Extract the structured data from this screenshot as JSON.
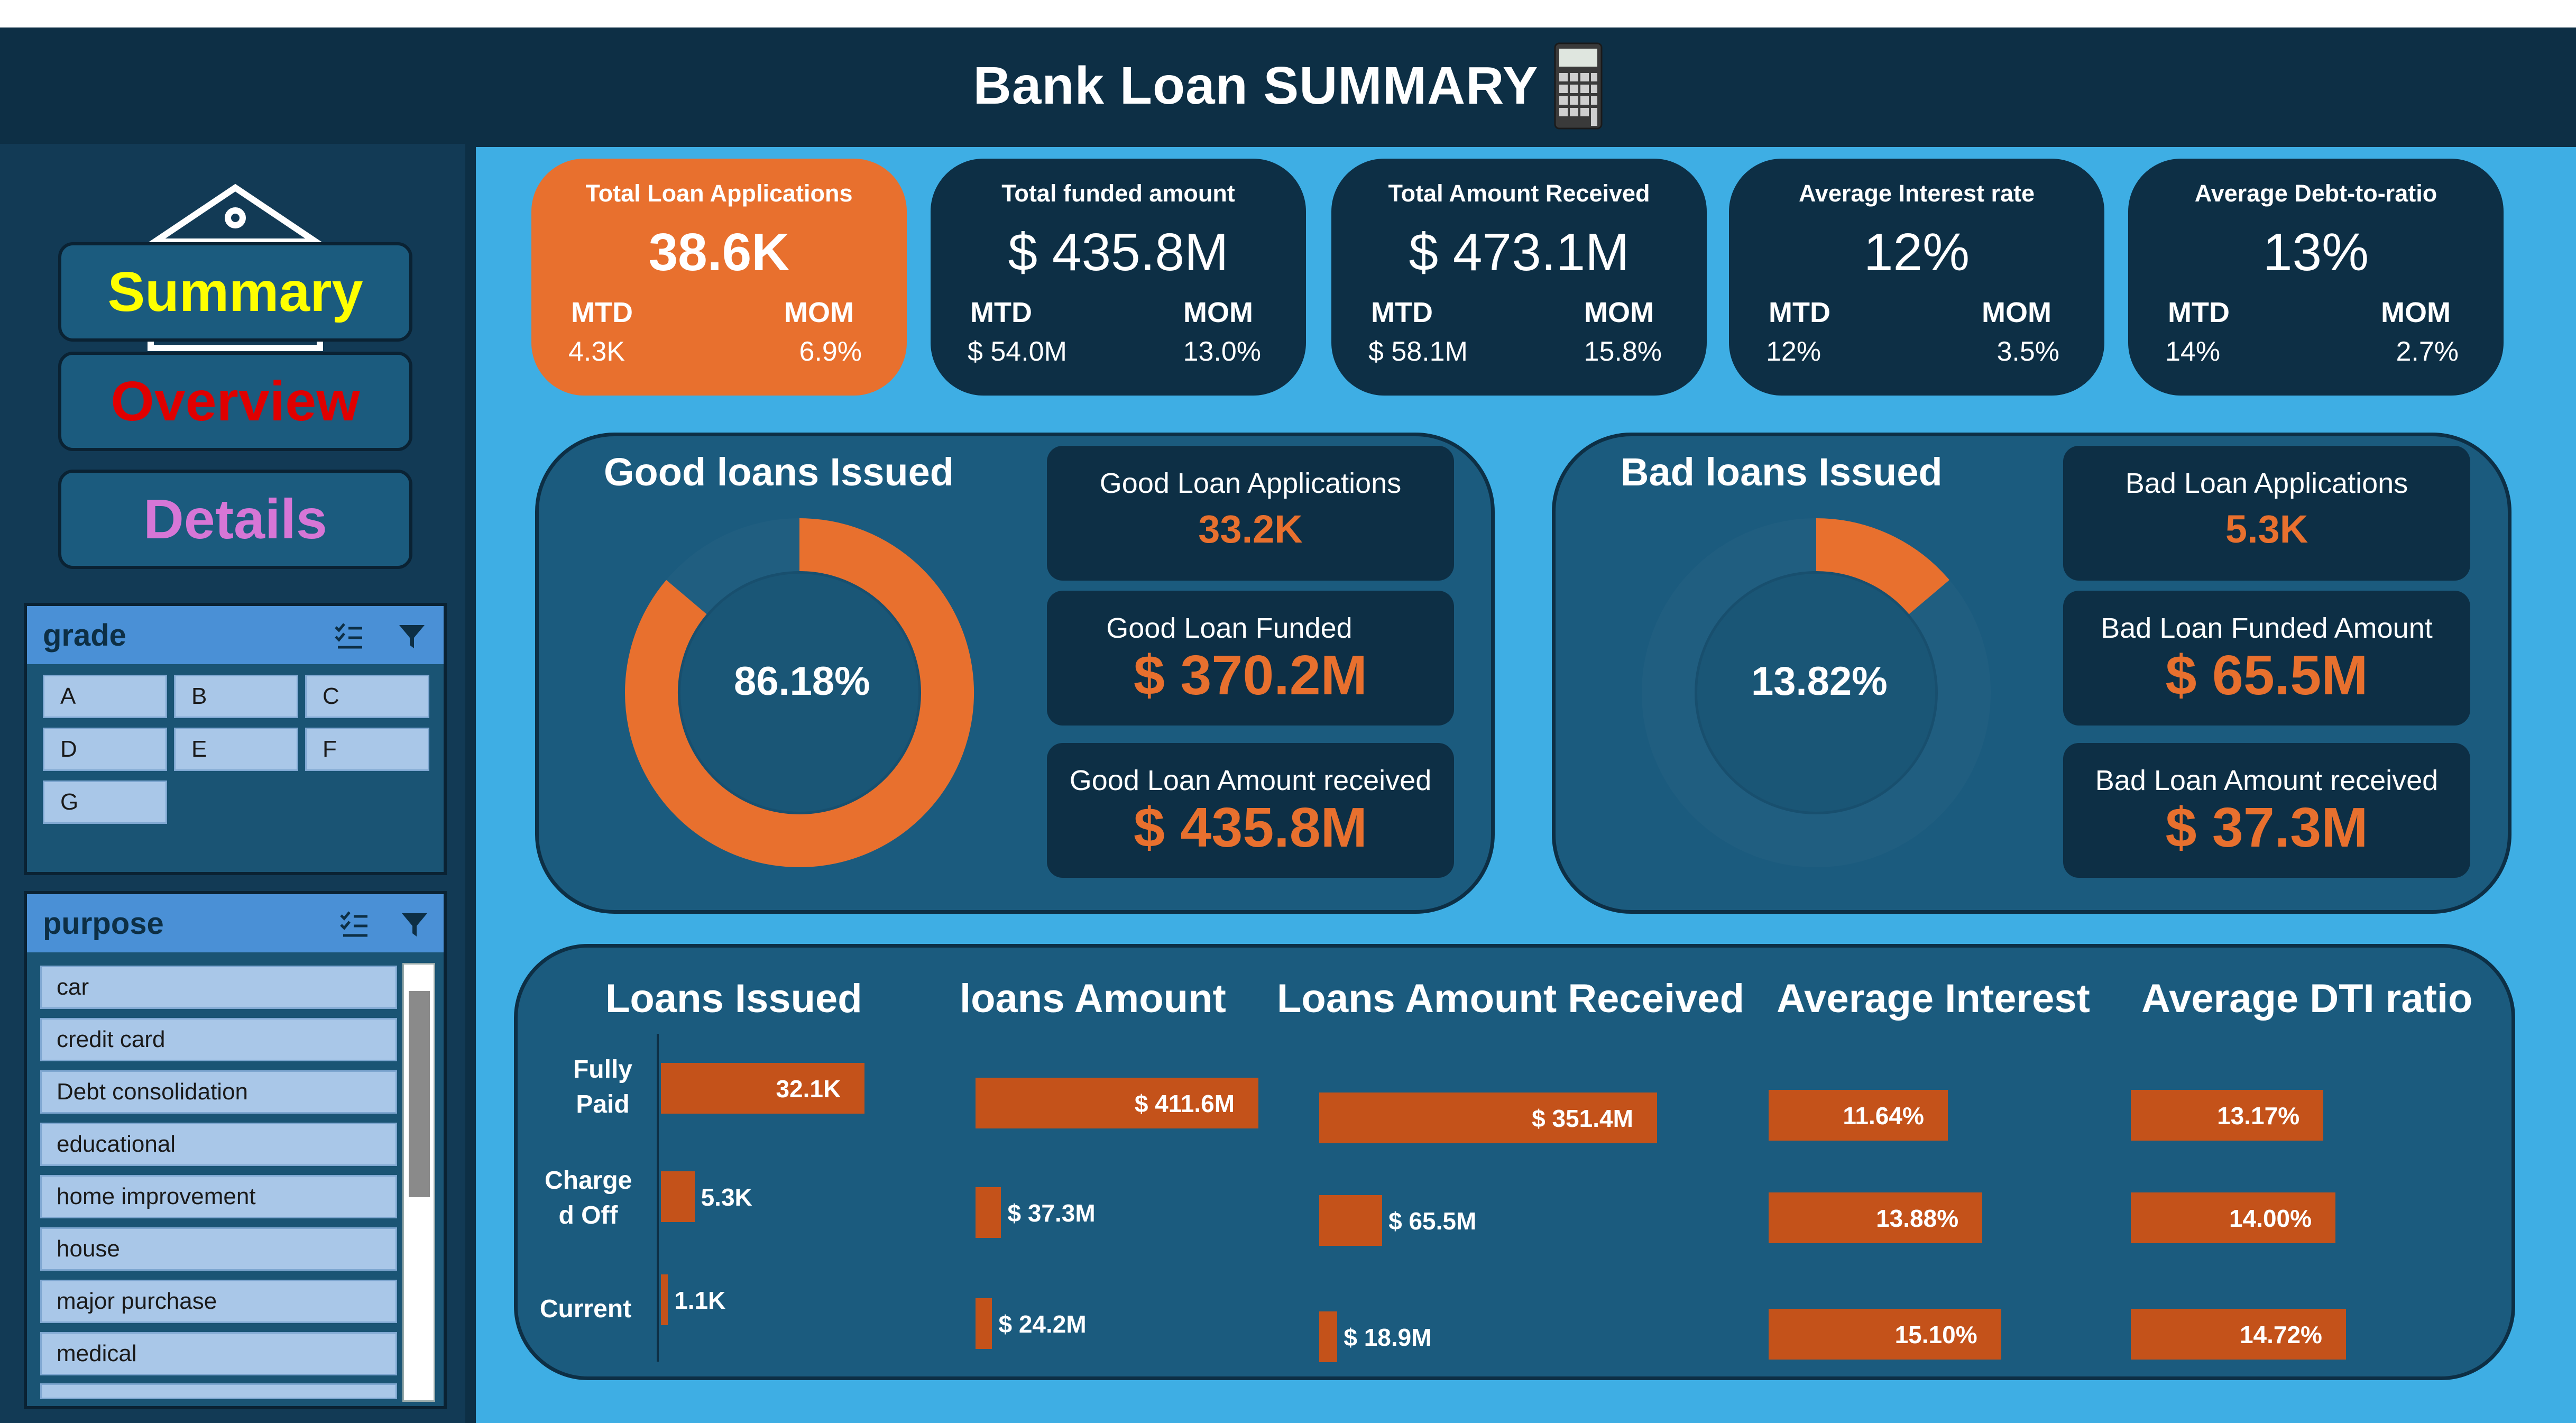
{
  "header": {
    "title": "Bank Loan SUMMARY"
  },
  "nav": {
    "summary": "Summary",
    "overview": "Overview",
    "details": "Details"
  },
  "colors": {
    "accent": "#e8702e",
    "dark": "#0d2f45",
    "panel": "#1b5b7e",
    "bar": "#c4521a",
    "summary": "#ffff00",
    "overview": "#e00000",
    "details": "#d676d6"
  },
  "grade_slicer": {
    "title": "grade",
    "options": [
      "A",
      "B",
      "C",
      "D",
      "E",
      "F",
      "G"
    ]
  },
  "purpose_slicer": {
    "title": "purpose",
    "options": [
      "car",
      "credit card",
      "Debt consolidation",
      "educational",
      "home improvement",
      "house",
      "major purchase",
      "medical"
    ]
  },
  "kpis": [
    {
      "title": "Total Loan Applications",
      "value": "38.6K",
      "mtd_label": "MTD",
      "mtd": "4.3K",
      "mom_label": "MOM",
      "mom": "6.9%"
    },
    {
      "title": "Total funded amount",
      "value": "$ 435.8M",
      "mtd_label": "MTD",
      "mtd": "$ 54.0M",
      "mom_label": "MOM",
      "mom": "13.0%"
    },
    {
      "title": "Total Amount Received",
      "value": "$ 473.1M",
      "mtd_label": "MTD",
      "mtd": "$ 58.1M",
      "mom_label": "MOM",
      "mom": "15.8%"
    },
    {
      "title": "Average Interest rate",
      "value": "12%",
      "mtd_label": "MTD",
      "mtd": "12%",
      "mom_label": "MOM",
      "mom": "3.5%"
    },
    {
      "title": "Average Debt-to-ratio",
      "value": "13%",
      "mtd_label": "MTD",
      "mtd": "14%",
      "mom_label": "MOM",
      "mom": "2.7%"
    }
  ],
  "good": {
    "title": "Good loans Issued",
    "percent_label": "86.18%",
    "applications_label": "Good Loan Applications",
    "applications": "33.2K",
    "funded_label": "Good Loan Funded",
    "funded": "$ 370.2M",
    "received_label": "Good Loan Amount received",
    "received": "$ 435.8M"
  },
  "bad": {
    "title": "Bad loans Issued",
    "percent_label": "13.82%",
    "applications_label": "Bad Loan Applications",
    "applications": "5.3K",
    "funded_label": "Bad Loan Funded Amount",
    "funded": "$ 65.5M",
    "received_label": "Bad Loan Amount received",
    "received": "$ 37.3M"
  },
  "chart_data": [
    {
      "type": "pie",
      "title": "Good loans Issued",
      "labels": [
        "Good",
        "Bad"
      ],
      "values": [
        86.18,
        13.82
      ]
    },
    {
      "type": "pie",
      "title": "Bad loans Issued",
      "labels": [
        "Bad",
        "Good"
      ],
      "values": [
        13.82,
        86.18
      ]
    },
    {
      "type": "bar",
      "categories": [
        "Fully Paid",
        "Charged Off",
        "Current"
      ],
      "category_labels": [
        [
          "Fully",
          "Paid"
        ],
        [
          "Charge",
          "d Off"
        ],
        [
          "Current"
        ]
      ],
      "series": [
        {
          "name": "Loans Issued",
          "values": [
            32.1,
            5.3,
            1.1
          ],
          "labels": [
            "32.1K",
            "5.3K",
            "1.1K"
          ],
          "max": 35
        },
        {
          "name": "loans Amount",
          "values": [
            411.6,
            37.3,
            24.2
          ],
          "labels": [
            "$ 411.6M",
            "$ 37.3M",
            "$ 24.2M"
          ],
          "max": 400
        },
        {
          "name": "Loans Amount Received",
          "values": [
            351.4,
            65.5,
            18.9
          ],
          "labels": [
            "$ 351.4M",
            "$ 65.5M",
            "$ 18.9M"
          ],
          "max": 330
        },
        {
          "name": "Average Interest",
          "values": [
            11.64,
            13.88,
            15.1
          ],
          "labels": [
            "11.64%",
            "13.88%",
            "15.10%"
          ],
          "max": 15.8
        },
        {
          "name": "Average DTI ratio",
          "values": [
            13.17,
            14.0,
            14.72
          ],
          "labels": [
            "13.17%",
            "14.00%",
            "14.72%"
          ],
          "max": 17
        }
      ]
    }
  ]
}
